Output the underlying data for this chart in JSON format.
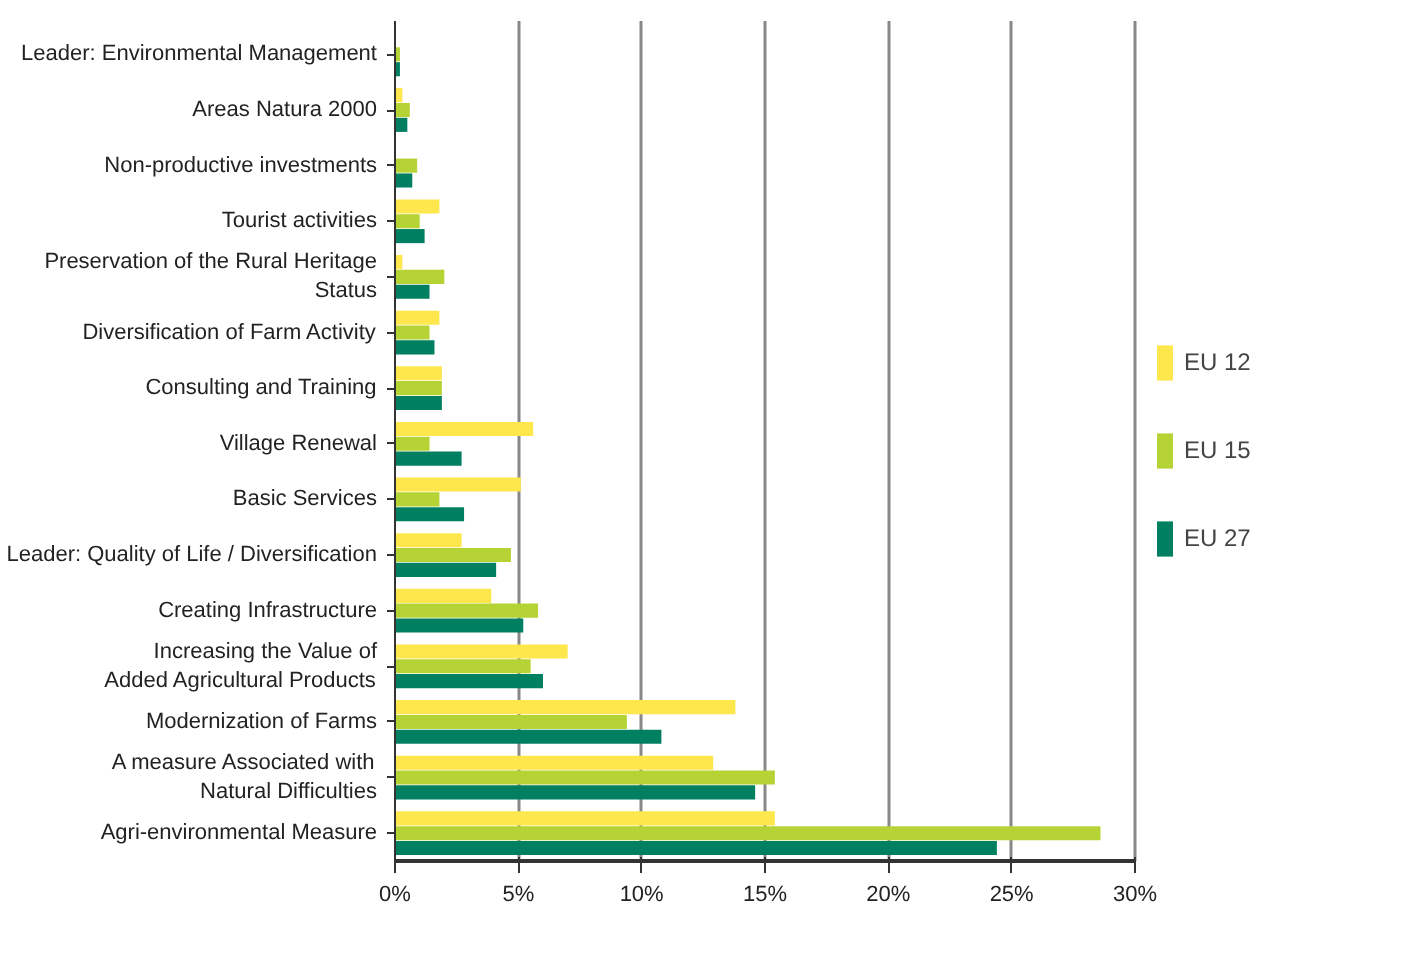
{
  "chart_data": {
    "type": "bar",
    "orientation": "horizontal",
    "categories": [
      "Leader: Environmental Management",
      "Areas Natura 2000",
      "Non-productive investments",
      "Tourist activities",
      "Preservation of the Rural Heritage\nStatus",
      "Diversification of Farm Activity",
      "Consulting and Training",
      "Village Renewal",
      "Basic Services",
      "Leader: Quality of Life / Diversification",
      "Creating Infrastructure",
      "Increasing the Value of\nAdded Agricultural Products",
      "Modernization of Farms",
      "A measure Associated with\nNatural Difficulties",
      "Agri-environmental Measure"
    ],
    "series": [
      {
        "name": "EU 12",
        "color": "#fde74c",
        "values": [
          null,
          0.3,
          0,
          1.8,
          0.3,
          1.8,
          1.9,
          5.6,
          5.1,
          2.7,
          3.9,
          7.0,
          13.8,
          12.9,
          15.4
        ]
      },
      {
        "name": "EU 15",
        "color": "#b5d334",
        "values": [
          0.2,
          0.6,
          0.9,
          1.0,
          2.0,
          1.4,
          1.9,
          1.4,
          1.8,
          4.7,
          5.8,
          5.5,
          9.4,
          15.4,
          28.6
        ]
      },
      {
        "name": "EU 27",
        "color": "#008060",
        "values": [
          0.2,
          0.5,
          0.7,
          1.2,
          1.4,
          1.6,
          1.9,
          2.7,
          2.8,
          4.1,
          5.2,
          6.0,
          10.8,
          14.6,
          24.4
        ]
      }
    ],
    "xlim": [
      0,
      30
    ],
    "xticks": [
      {
        "value": 0,
        "label": "0%"
      },
      {
        "value": 5,
        "label": "5%"
      },
      {
        "value": 10,
        "label": "10%"
      },
      {
        "value": 15,
        "label": "15%"
      },
      {
        "value": 20,
        "label": "20%"
      },
      {
        "value": 25,
        "label": "25%"
      },
      {
        "value": 30,
        "label": "30%"
      }
    ],
    "grid": "x",
    "legend": "right"
  }
}
